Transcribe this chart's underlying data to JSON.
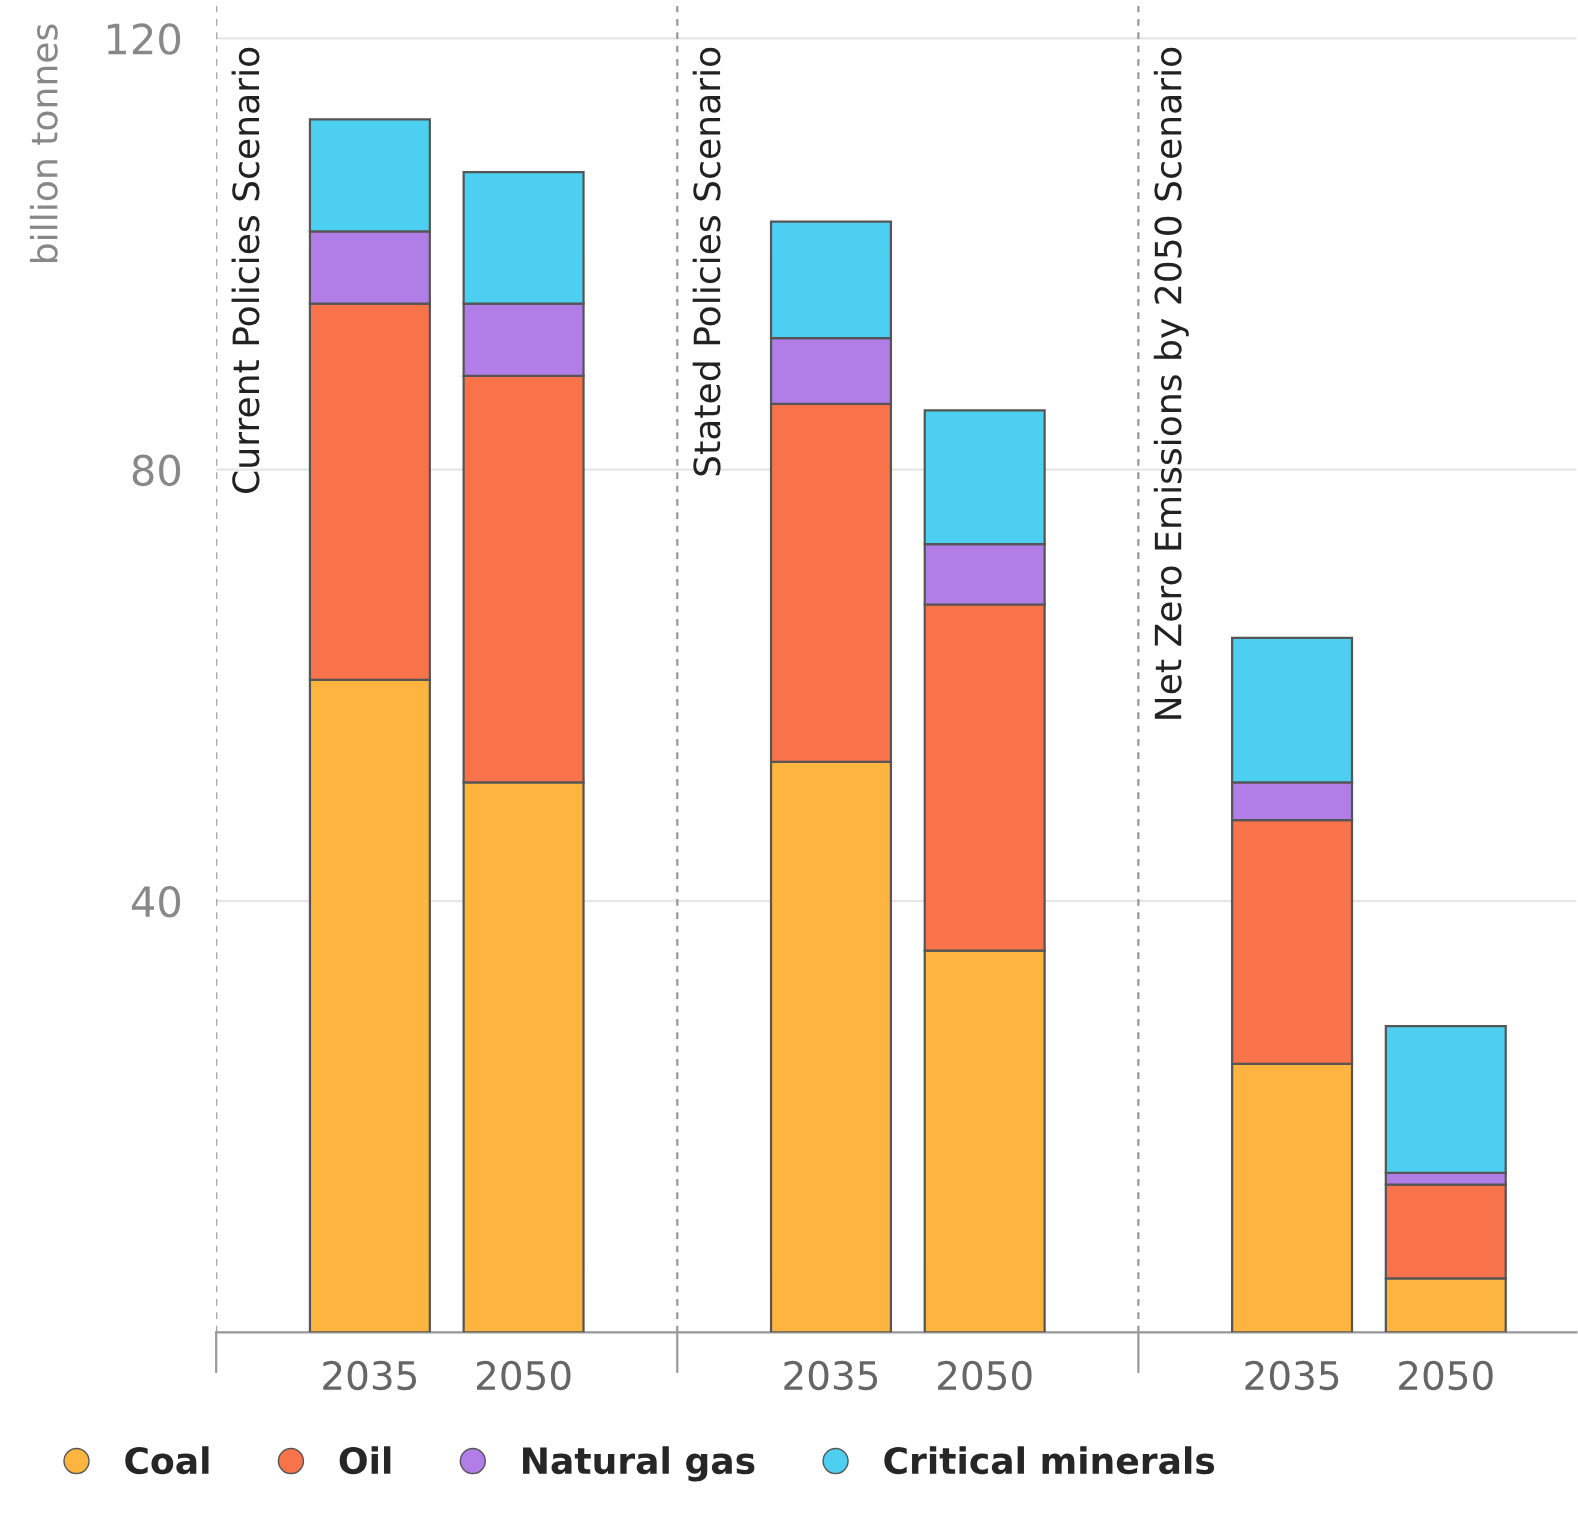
{
  "chart_data": {
    "type": "bar",
    "stacked": true,
    "ylabel": "billion tonnes",
    "categories": [
      "2035",
      "2050",
      "2035",
      "2050",
      "2035",
      "2050"
    ],
    "series": [
      {
        "name": "Coal",
        "color": "#fdb53f",
        "values": [
          60.5,
          51.0,
          52.9,
          35.4,
          24.9,
          5.0
        ]
      },
      {
        "name": "Oil",
        "color": "#f9734a",
        "values": [
          34.9,
          37.7,
          33.2,
          32.1,
          22.6,
          8.7
        ]
      },
      {
        "name": "Natural gas",
        "color": "#b07ee6",
        "values": [
          6.7,
          6.7,
          6.1,
          5.6,
          3.5,
          1.1
        ]
      },
      {
        "name": "Critical minerals",
        "color": "#4ccff0",
        "values": [
          10.4,
          12.2,
          10.8,
          12.4,
          13.4,
          13.6
        ]
      }
    ],
    "annotations": [
      "Current Policies Scenario",
      "Stated Policies Scenario",
      "Net Zero Emissions by 2050 Scenario"
    ],
    "ylim": [
      0,
      123
    ],
    "yticks": [
      {
        "value": 0,
        "label": null
      },
      40,
      80,
      120
    ],
    "grid": "y",
    "legend": "bottom left"
  }
}
